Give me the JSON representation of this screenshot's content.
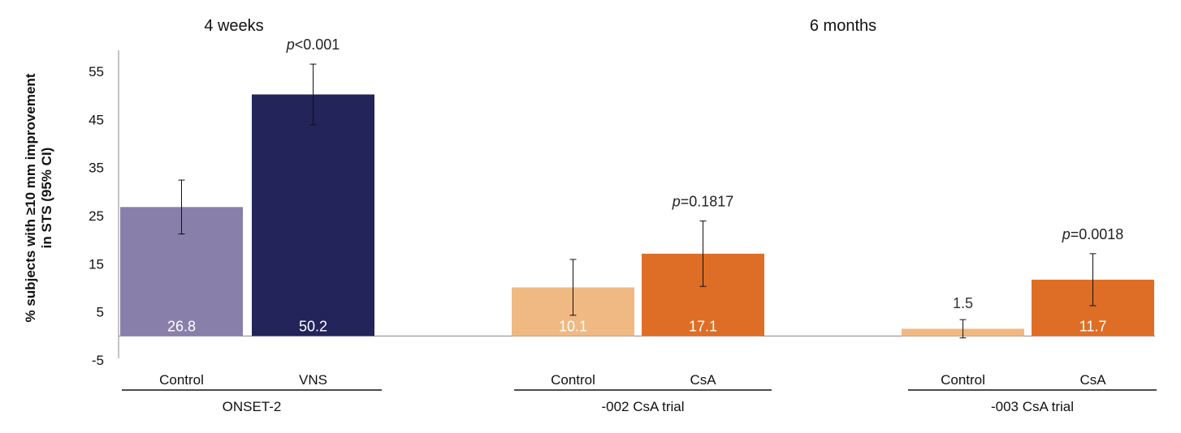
{
  "chart_data": {
    "type": "bar",
    "ylabel": "% subjects with ≥10 mm improvement in STS (95% CI)",
    "ylabel_lines": [
      "% subjects with ≥10 mm improvement",
      "in STS (95% CI)"
    ],
    "ylim": [
      -5,
      60
    ],
    "yticks": [
      "55",
      "45",
      "35",
      "25",
      "15",
      "5",
      "-5"
    ],
    "yticks_values": [
      55,
      45,
      35,
      25,
      15,
      5,
      -5
    ],
    "grid": false,
    "periods": [
      {
        "label": "4 weeks",
        "groups": [
          0
        ]
      },
      {
        "label": "6 months",
        "groups": [
          1,
          2
        ]
      }
    ],
    "groups": [
      {
        "name": "ONSET-2",
        "bars": [
          {
            "label": "Control",
            "value": 26.8,
            "value_label": "26.8",
            "ci": [
              21.2,
              32.4
            ],
            "color": "#8880aa",
            "label_color": "#ffffff"
          },
          {
            "label": "VNS",
            "value": 50.2,
            "value_label": "50.2",
            "ci": [
              43.9,
              56.5
            ],
            "color": "#22245a",
            "label_color": "#ffffff"
          }
        ],
        "p_value_prefix": "p",
        "p_value_rest": "<0.001"
      },
      {
        "name": "-002 CsA trial",
        "bars": [
          {
            "label": "Control",
            "value": 10.1,
            "value_label": "10.1",
            "ci": [
              4.3,
              15.9
            ],
            "color": "#f0b882",
            "label_color": "#ffffff"
          },
          {
            "label": "CsA",
            "value": 17.1,
            "value_label": "17.1",
            "ci": [
              10.3,
              23.9
            ],
            "color": "#de6e26",
            "label_color": "#ffffff"
          }
        ],
        "p_value_prefix": "p",
        "p_value_rest": "=0.1817"
      },
      {
        "name": "-003 CsA trial",
        "bars": [
          {
            "label": "Control",
            "value": 1.5,
            "value_label": "1.5",
            "ci": [
              -0.4,
              3.4
            ],
            "color": "#f0b882",
            "label_color": "#333333",
            "label_above": true
          },
          {
            "label": "CsA",
            "value": 11.7,
            "value_label": "11.7",
            "ci": [
              6.3,
              17.1
            ],
            "color": "#de6e26",
            "label_color": "#ffffff"
          }
        ],
        "p_value_prefix": "p",
        "p_value_rest": "=0.0018"
      }
    ]
  }
}
